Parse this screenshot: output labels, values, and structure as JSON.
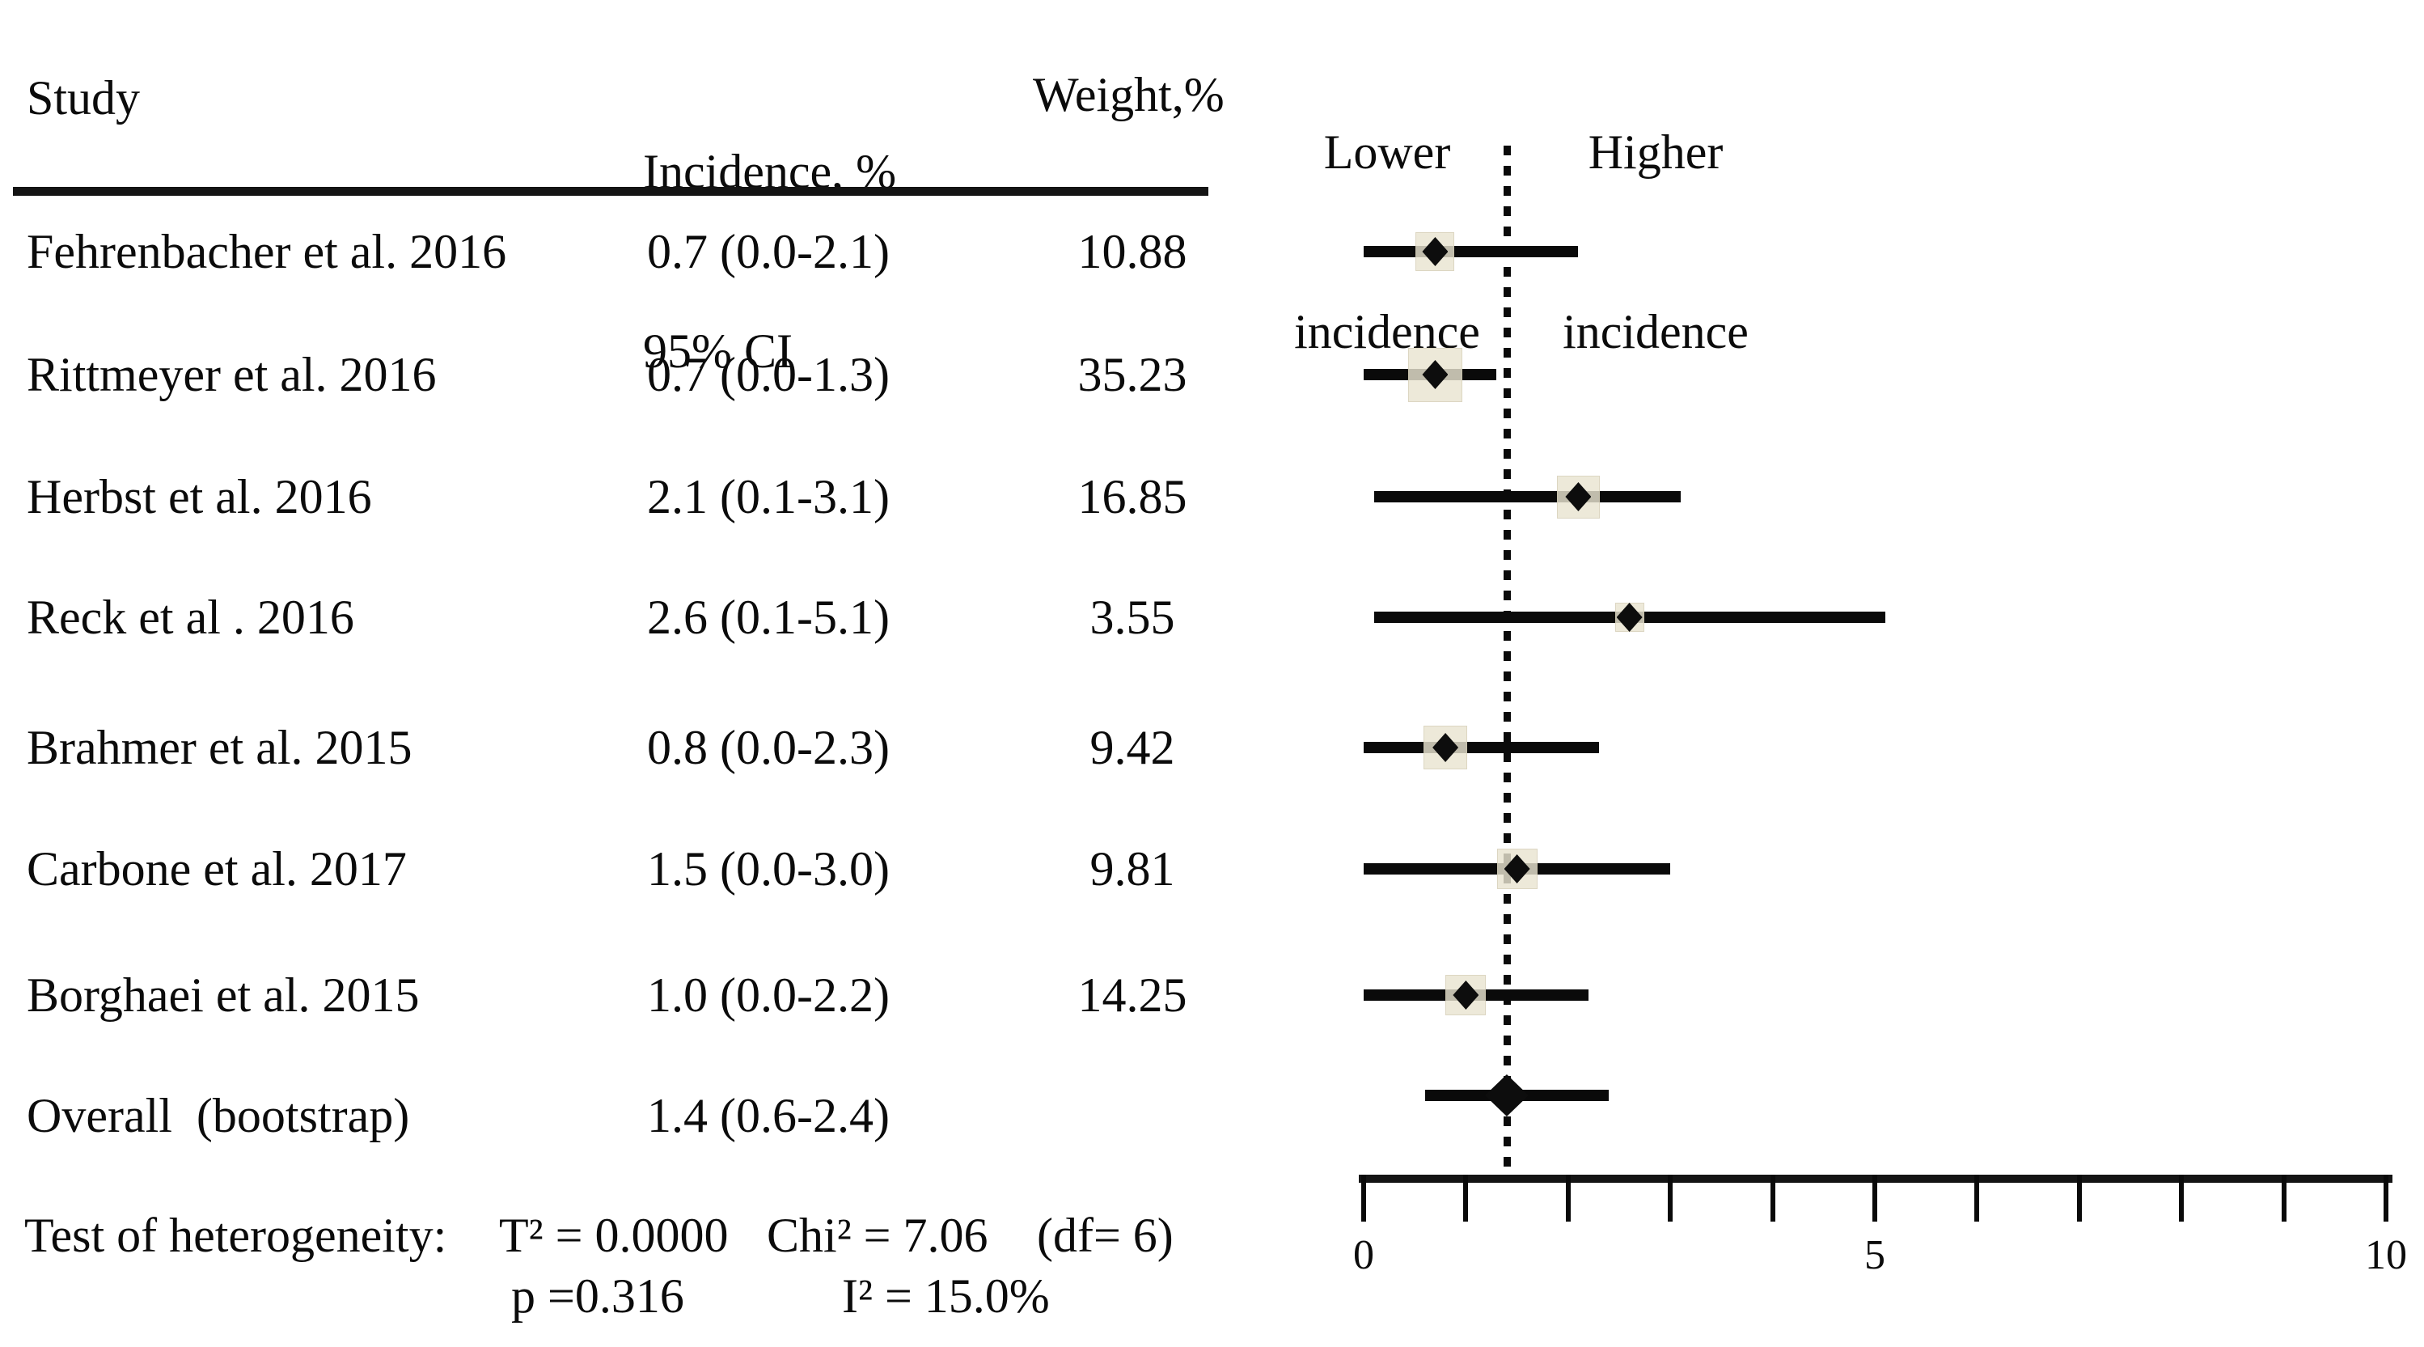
{
  "header": {
    "study": "Study",
    "incidence_line1": "Incidence, %",
    "incidence_line2": "95% CI",
    "weight": "Weight,%",
    "lower_line1": "Lower",
    "lower_line2": "incidence",
    "higher_line1": "Higher",
    "higher_line2": "incidence"
  },
  "chart_data": {
    "type": "forest",
    "x_axis": {
      "min": 0,
      "max": 10,
      "tick_step": 1,
      "labeled_ticks": [
        0,
        5,
        10
      ]
    },
    "reference_line_x": 1.4,
    "direction_labels": [
      "Lower incidence",
      "Higher incidence"
    ],
    "studies": [
      {
        "label": "Fehrenbacher et al. 2016",
        "estimate": 0.7,
        "ci_low": 0.0,
        "ci_high": 2.1,
        "weight_pct": 10.88,
        "ci_text": "0.7 (0.0-2.1)",
        "weight_text": "10.88"
      },
      {
        "label": "Rittmeyer et al. 2016",
        "estimate": 0.7,
        "ci_low": 0.0,
        "ci_high": 1.3,
        "weight_pct": 35.23,
        "ci_text": "0.7 (0.0-1.3)",
        "weight_text": "35.23"
      },
      {
        "label": "Herbst et al. 2016",
        "estimate": 2.1,
        "ci_low": 0.1,
        "ci_high": 3.1,
        "weight_pct": 16.85,
        "ci_text": "2.1 (0.1-3.1)",
        "weight_text": "16.85"
      },
      {
        "label": "Reck et al . 2016",
        "estimate": 2.6,
        "ci_low": 0.1,
        "ci_high": 5.1,
        "weight_pct": 3.55,
        "ci_text": "2.6 (0.1-5.1)",
        "weight_text": "3.55"
      },
      {
        "label": "Brahmer et al. 2015",
        "estimate": 0.8,
        "ci_low": 0.0,
        "ci_high": 2.3,
        "weight_pct": 9.42,
        "ci_text": "0.8 (0.0-2.3)",
        "weight_text": "9.42"
      },
      {
        "label": "Carbone et al. 2017",
        "estimate": 1.5,
        "ci_low": 0.0,
        "ci_high": 3.0,
        "weight_pct": 9.81,
        "ci_text": "1.5 (0.0-3.0)",
        "weight_text": "9.81"
      },
      {
        "label": "Borghaei et al. 2015",
        "estimate": 1.0,
        "ci_low": 0.0,
        "ci_high": 2.2,
        "weight_pct": 14.25,
        "ci_text": "1.0 (0.0-2.2)",
        "weight_text": "14.25"
      }
    ],
    "overall": {
      "label": "Overall  (bootstrap)",
      "estimate": 1.4,
      "ci_low": 0.6,
      "ci_high": 2.4,
      "ci_text": "1.4 (0.6-2.4)"
    },
    "heterogeneity": {
      "tau2": 0.0,
      "chi2": 7.06,
      "df": 6,
      "p": 0.316,
      "i2_pct": 15.0
    }
  },
  "footer": {
    "prefix": "Test of heterogeneity:",
    "tau2_text": "T² = 0.0000",
    "chi2_text": "Chi² = 7.06",
    "df_text": "(df= 6)",
    "p_text": "p =0.316",
    "i2_text": "I² = 15.0%"
  },
  "colors": {
    "ink": "#0a0a0a",
    "weight_square_fill": "#e9e4d1"
  }
}
